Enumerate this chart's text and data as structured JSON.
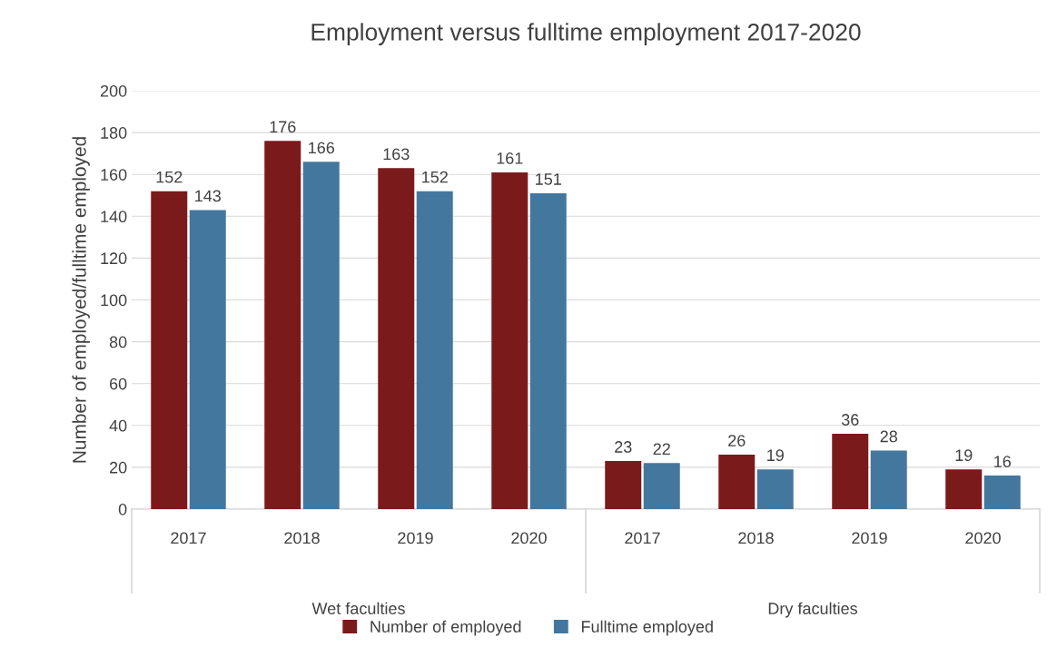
{
  "chart_data": {
    "type": "bar",
    "title": "Employment versus fulltime employment 2017-2020",
    "ylabel": "Number of employed/fulltime employed",
    "categories": [
      "2017",
      "2018",
      "2019",
      "2020",
      "2017",
      "2018",
      "2019",
      "2020"
    ],
    "series": [
      {
        "name": "Number of employed",
        "color": "#7b1a1b",
        "values": [
          152,
          176,
          163,
          161,
          23,
          26,
          36,
          19
        ]
      },
      {
        "name": "Fulltime employed",
        "color": "#44779e",
        "values": [
          143,
          166,
          152,
          151,
          22,
          19,
          28,
          16
        ]
      }
    ],
    "annotations": [
      "Wet faculties",
      "Dry faculties"
    ],
    "ylim": [
      0,
      200
    ],
    "yticks": [
      0,
      20,
      40,
      60,
      80,
      100,
      120,
      140,
      160,
      180,
      200
    ],
    "grid": "y",
    "legend": "bottom",
    "data_labels": true
  }
}
